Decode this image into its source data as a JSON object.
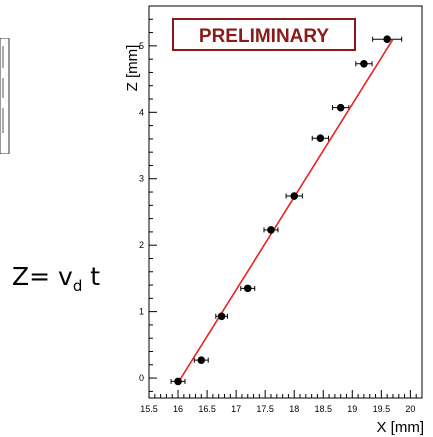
{
  "formula": {
    "lhs": "Z= v",
    "sub": "d",
    "rhs": " t"
  },
  "chart_data": {
    "type": "scatter",
    "title": "",
    "xlabel": "X [mm]",
    "ylabel": "Z [mm]",
    "xlim": [
      15.5,
      20.2
    ],
    "ylim": [
      -0.3,
      5.6
    ],
    "x_ticks": [
      15.5,
      16,
      16.5,
      17,
      17.5,
      18,
      18.5,
      19,
      19.5,
      20
    ],
    "y_ticks": [
      0,
      1,
      2,
      3,
      4,
      5
    ],
    "grid": false,
    "annotation": "PRELIMINARY",
    "series": [
      {
        "marker_color": "#000000",
        "points": [
          {
            "x": 16.0,
            "y": -0.05,
            "xerr": 0.12
          },
          {
            "x": 16.4,
            "y": 0.27,
            "xerr": 0.12
          },
          {
            "x": 16.75,
            "y": 0.93,
            "xerr": 0.1
          },
          {
            "x": 17.2,
            "y": 1.35,
            "xerr": 0.12
          },
          {
            "x": 17.6,
            "y": 2.23,
            "xerr": 0.12
          },
          {
            "x": 18.0,
            "y": 2.74,
            "xerr": 0.14
          },
          {
            "x": 18.45,
            "y": 3.61,
            "xerr": 0.14
          },
          {
            "x": 18.8,
            "y": 4.07,
            "xerr": 0.14
          },
          {
            "x": 19.2,
            "y": 4.73,
            "xerr": 0.14
          },
          {
            "x": 19.6,
            "y": 5.1,
            "xerr": 0.25
          }
        ]
      }
    ],
    "fit_line": {
      "color": "#e8231f",
      "x": [
        16.0,
        19.7
      ],
      "y": [
        -0.07,
        5.1
      ]
    }
  }
}
